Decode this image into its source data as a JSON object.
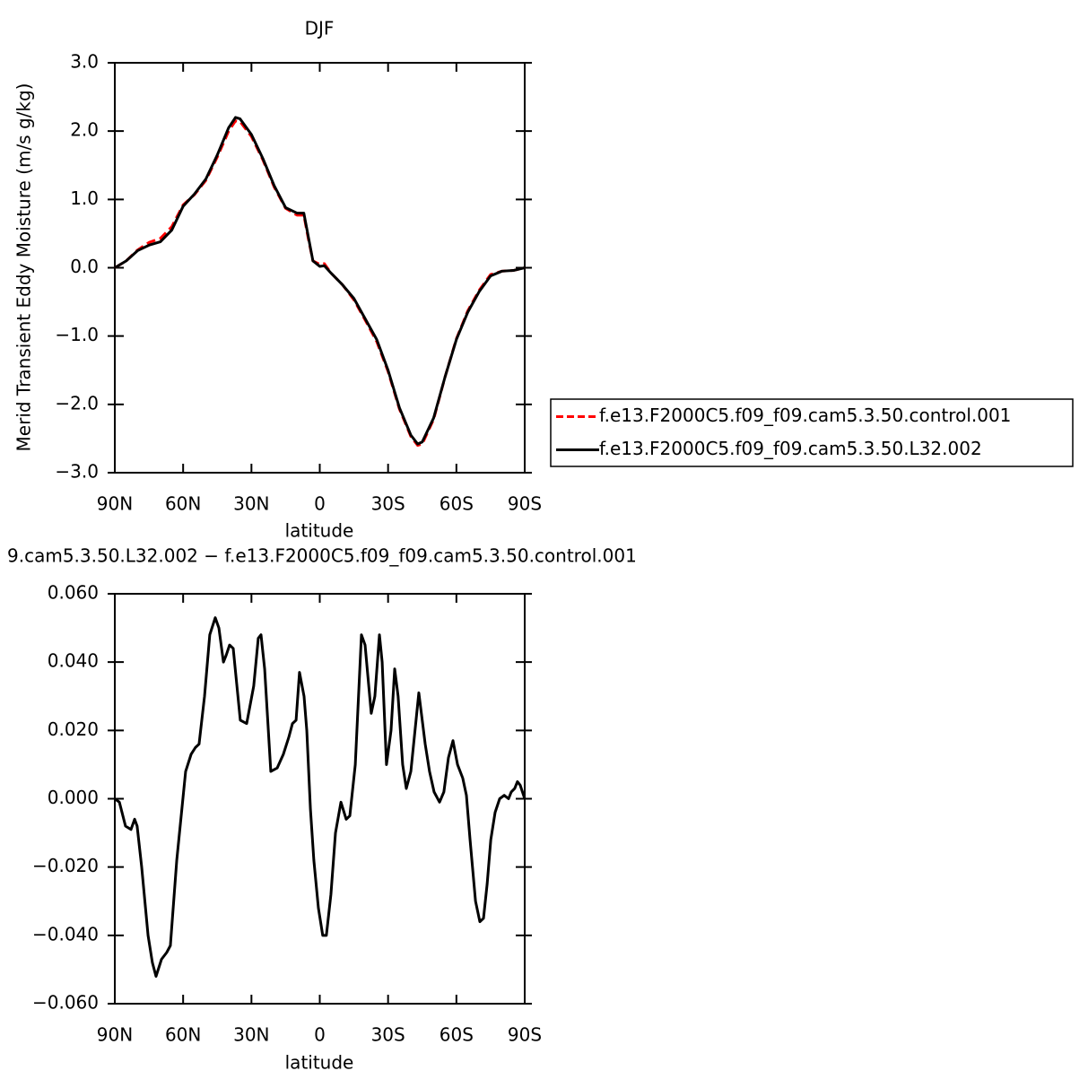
{
  "chart_data": [
    {
      "type": "line",
      "title": "DJF",
      "ylabel": "Merid Transient Eddy Moisture (m/s g/kg)",
      "xlabel": "latitude",
      "xlim": [
        90,
        -90
      ],
      "ylim": [
        -3.0,
        3.0
      ],
      "xticks": [
        {
          "value": 90,
          "label": "90N"
        },
        {
          "value": 60,
          "label": "60N"
        },
        {
          "value": 30,
          "label": "30N"
        },
        0,
        {
          "value": -30,
          "label": "30S"
        },
        {
          "value": -60,
          "label": "60S"
        },
        {
          "value": -90,
          "label": "90S"
        }
      ],
      "yticks": [
        {
          "value": 3,
          "label": "3.0"
        },
        {
          "value": 2,
          "label": "2.0"
        },
        {
          "value": 1,
          "label": "1.0"
        },
        {
          "value": 0,
          "label": "0.0"
        },
        {
          "value": -1,
          "label": "−1.0"
        },
        {
          "value": -2,
          "label": "−2.0"
        },
        {
          "value": -3,
          "label": "−3.0"
        }
      ],
      "legend": "right",
      "x": [
        90,
        85,
        80,
        75,
        70,
        65,
        60,
        55,
        50,
        45,
        40,
        37,
        35,
        30,
        25,
        20,
        15,
        10,
        7,
        5,
        3,
        0,
        -2,
        -5,
        -10,
        -15,
        -20,
        -25,
        -30,
        -35,
        -40,
        -43,
        -45,
        -50,
        -55,
        -60,
        -65,
        -70,
        -75,
        -80,
        -85,
        -90
      ],
      "series": [
        {
          "name": "f.e13.F2000C5.f09_f09.cam5.3.50.control.001",
          "color": "#ff0000",
          "line_style": "dashed",
          "values": [
            0,
            0.1,
            0.26,
            0.37,
            0.43,
            0.6,
            0.92,
            1.07,
            1.28,
            1.62,
            2.0,
            2.15,
            2.14,
            1.92,
            1.58,
            1.18,
            0.87,
            0.77,
            0.77,
            0.42,
            0.1,
            0.05,
            0.06,
            -0.08,
            -0.25,
            -0.47,
            -0.77,
            -1.08,
            -1.52,
            -2.07,
            -2.47,
            -2.6,
            -2.58,
            -2.22,
            -1.6,
            -1.04,
            -0.63,
            -0.33,
            -0.1,
            -0.05,
            -0.04,
            0
          ]
        },
        {
          "name": "f.e13.F2000C5.f09_f09.cam5.3.50.L32.002",
          "color": "#000000",
          "line_style": "solid",
          "values": [
            0,
            0.1,
            0.25,
            0.33,
            0.38,
            0.55,
            0.9,
            1.08,
            1.3,
            1.65,
            2.05,
            2.2,
            2.18,
            1.95,
            1.6,
            1.2,
            0.88,
            0.8,
            0.8,
            0.45,
            0.1,
            0.02,
            0.03,
            -0.08,
            -0.25,
            -0.45,
            -0.75,
            -1.05,
            -1.5,
            -2.05,
            -2.45,
            -2.58,
            -2.55,
            -2.2,
            -1.6,
            -1.05,
            -0.65,
            -0.35,
            -0.12,
            -0.05,
            -0.04,
            0
          ]
        }
      ]
    },
    {
      "type": "line",
      "title": "9.cam5.3.50.L32.002 − f.e13.F2000C5.f09_f09.cam5.3.50.control.001",
      "xlabel": "latitude",
      "xlim": [
        90,
        -90
      ],
      "ylim": [
        -0.06,
        0.06
      ],
      "xticks": [
        {
          "value": 90,
          "label": "90N"
        },
        {
          "value": 60,
          "label": "60N"
        },
        {
          "value": 30,
          "label": "30N"
        },
        0,
        {
          "value": -30,
          "label": "30S"
        },
        {
          "value": -60,
          "label": "60S"
        },
        {
          "value": -90,
          "label": "90S"
        }
      ],
      "yticks": [
        {
          "value": 0.06,
          "label": "0.060"
        },
        {
          "value": 0.04,
          "label": "0.040"
        },
        {
          "value": 0.02,
          "label": "0.020"
        },
        {
          "value": 0,
          "label": "0.000"
        },
        {
          "value": -0.02,
          "label": "−0.020"
        },
        {
          "value": -0.04,
          "label": "−0.040"
        },
        {
          "value": -0.06,
          "label": "−0.060"
        }
      ],
      "x": [
        90,
        88,
        85.3,
        82.9,
        81.3,
        80.2,
        78.2,
        75.4,
        73.5,
        71.9,
        69.5,
        67.2,
        65.6,
        62.8,
        58.9,
        56.5,
        54.6,
        53,
        50.6,
        48.3,
        45.9,
        44.3,
        42.3,
        41.1,
        39.6,
        38,
        34.9,
        32.1,
        29,
        27,
        25.8,
        24.2,
        21.5,
        18.7,
        16,
        13.6,
        12,
        10.4,
        8.9,
        6.9,
        5.7,
        4.1,
        2.6,
        0.6,
        -1.3,
        -2.9,
        -4.9,
        -6.9,
        -9.3,
        -11.6,
        -13.2,
        -15.6,
        -18.3,
        -19.9,
        -22.6,
        -24.2,
        -26.2,
        -27.4,
        -29.3,
        -31.3,
        -32.9,
        -34.4,
        -36.4,
        -38,
        -40,
        -43.5,
        -46.3,
        -48.2,
        -50.2,
        -52.6,
        -54.5,
        -56.5,
        -58.5,
        -60.5,
        -62.8,
        -64.4,
        -66,
        -68.4,
        -70.3,
        -71.9,
        -73.5,
        -75.1,
        -77,
        -79,
        -81,
        -82.9,
        -84.1,
        -85.6,
        -86.8,
        -88,
        -90
      ],
      "series": [
        {
          "color": "#000000",
          "line_style": "solid",
          "values": [
            0,
            -0.001,
            -0.008,
            -0.009,
            -0.006,
            -0.008,
            -0.02,
            -0.04,
            -0.048,
            -0.052,
            -0.047,
            -0.045,
            -0.043,
            -0.018,
            0.008,
            0.013,
            0.015,
            0.016,
            0.03,
            0.048,
            0.053,
            0.05,
            0.04,
            0.042,
            0.045,
            0.044,
            0.023,
            0.022,
            0.033,
            0.047,
            0.048,
            0.038,
            0.008,
            0.009,
            0.013,
            0.018,
            0.022,
            0.023,
            0.037,
            0.03,
            0.02,
            -0.003,
            -0.018,
            -0.032,
            -0.04,
            -0.04,
            -0.028,
            -0.01,
            -0.001,
            -0.006,
            -0.005,
            0.01,
            0.048,
            0.045,
            0.025,
            0.03,
            0.048,
            0.04,
            0.01,
            0.02,
            0.038,
            0.03,
            0.01,
            0.003,
            0.008,
            0.031,
            0.016,
            0.008,
            0.002,
            -0.001,
            0.002,
            0.012,
            0.017,
            0.01,
            0.006,
            0.001,
            -0.012,
            -0.03,
            -0.036,
            -0.035,
            -0.025,
            -0.012,
            -0.004,
            0,
            0.001,
            0,
            0.002,
            0.003,
            0.005,
            0.004,
            0
          ]
        }
      ]
    }
  ]
}
